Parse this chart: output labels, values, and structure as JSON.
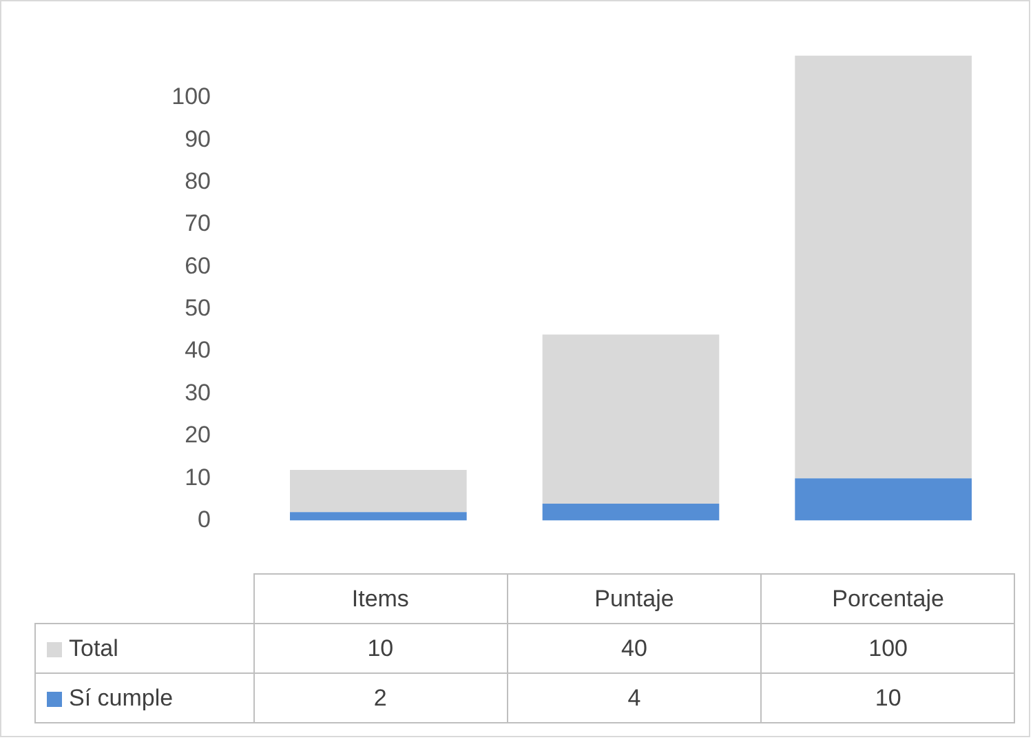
{
  "chart_data": {
    "type": "bar",
    "stacked": true,
    "categories": [
      "Items",
      "Puntaje",
      "Porcentaje"
    ],
    "series": [
      {
        "name": "Sí cumple",
        "color": "#558ed5",
        "values": [
          2,
          4,
          10
        ]
      },
      {
        "name": "Total",
        "color": "#d9d9d9",
        "values": [
          10,
          40,
          100
        ]
      }
    ],
    "ylim": [
      0,
      110
    ],
    "yticks": [
      0,
      10,
      20,
      30,
      40,
      50,
      60,
      70,
      80,
      90,
      100
    ],
    "grid": false,
    "legend": "bottom",
    "data_labels": true
  }
}
